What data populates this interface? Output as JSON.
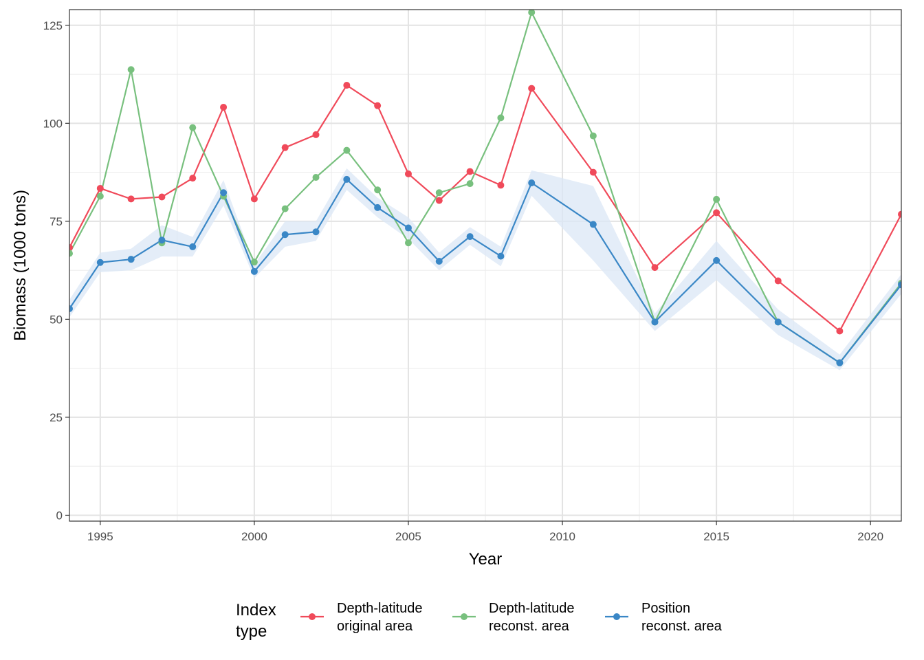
{
  "chart_data": {
    "type": "line",
    "xlabel": "Year",
    "ylabel": "Biomass (1000 tons)",
    "xlim": [
      1994,
      2021
    ],
    "ylim": [
      -1.5,
      129
    ],
    "x_ticks": [
      1995,
      2000,
      2005,
      2010,
      2015,
      2020
    ],
    "y_ticks": [
      0,
      25,
      50,
      75,
      100,
      125
    ],
    "grid": true,
    "legend": {
      "position": "bottom",
      "title_lines": [
        "Index",
        "type"
      ]
    },
    "series": [
      {
        "name": "Depth-latitude original area",
        "label_lines": [
          "Depth-latitude",
          "original area"
        ],
        "color": "#f04a5a",
        "x": [
          1994,
          1995,
          1996,
          1997,
          1998,
          1999,
          2000,
          2001,
          2002,
          2003,
          2004,
          2005,
          2006,
          2007,
          2008,
          2009,
          2011,
          2013,
          2015,
          2017,
          2019,
          2021
        ],
        "y": [
          68.3,
          83.4,
          80.7,
          81.2,
          86.0,
          104.1,
          80.7,
          93.8,
          97.1,
          109.7,
          104.5,
          87.1,
          80.3,
          87.7,
          84.2,
          108.9,
          87.5,
          63.2,
          77.2,
          59.8,
          47.0,
          76.8
        ]
      },
      {
        "name": "Depth-latitude reconst. area",
        "label_lines": [
          "Depth-latitude",
          "reconst. area"
        ],
        "color": "#78c07e",
        "x": [
          1994,
          1995,
          1996,
          1997,
          1998,
          1999,
          2000,
          2001,
          2002,
          2003,
          2004,
          2005,
          2006,
          2007,
          2008,
          2009,
          2011,
          2013,
          2015,
          2017,
          2019,
          2021
        ],
        "y": [
          66.8,
          81.4,
          113.7,
          69.5,
          98.9,
          81.4,
          64.6,
          78.2,
          86.2,
          93.1,
          83.0,
          69.5,
          82.3,
          84.6,
          101.4,
          128.3,
          96.8,
          49.3,
          80.6,
          49.3,
          38.9,
          59.2
        ]
      },
      {
        "name": "Position reconst. area",
        "label_lines": [
          "Position",
          "reconst. area"
        ],
        "color": "#3a87c6",
        "band_color": "#dbe7f5",
        "x": [
          1994,
          1995,
          1996,
          1997,
          1998,
          1999,
          2000,
          2001,
          2002,
          2003,
          2004,
          2005,
          2006,
          2007,
          2008,
          2009,
          2011,
          2013,
          2015,
          2017,
          2019,
          2021
        ],
        "y": [
          52.7,
          64.5,
          65.3,
          70.2,
          68.5,
          82.3,
          62.2,
          71.6,
          72.3,
          85.7,
          78.5,
          73.3,
          64.8,
          71.1,
          66.1,
          84.8,
          74.2,
          49.3,
          65.0,
          49.3,
          38.9,
          58.8
        ],
        "lower": [
          50.5,
          62.0,
          62.5,
          66.0,
          66.0,
          79.0,
          60.5,
          68.5,
          70.0,
          83.0,
          76.0,
          70.5,
          62.5,
          69.0,
          63.5,
          81.5,
          65.0,
          47.0,
          60.0,
          46.0,
          37.0,
          56.5
        ],
        "upper": [
          55.0,
          67.0,
          68.0,
          74.0,
          71.0,
          85.5,
          64.0,
          75.0,
          75.0,
          88.5,
          81.0,
          76.0,
          67.0,
          73.5,
          68.5,
          88.0,
          84.0,
          51.5,
          70.0,
          52.5,
          41.0,
          61.5
        ]
      }
    ]
  }
}
